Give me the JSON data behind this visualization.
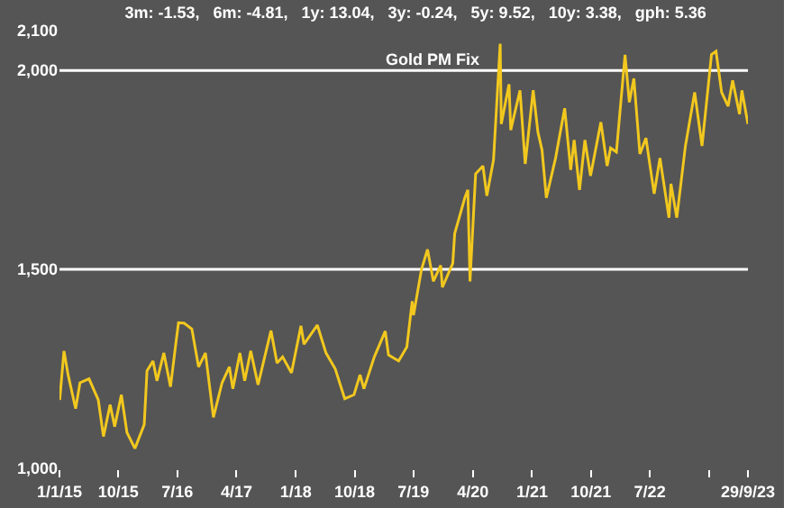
{
  "chart_data": {
    "type": "line",
    "title": "3m: -1.53,   6m: -4.81,   1y: 13.04,   3y: -0.24,   5y: 9.52,   10y: 3.38,   gph: 5.36",
    "annotations": [
      "Gold PM Fix"
    ],
    "x": [
      "2015-01-02",
      "2015-01-22",
      "2015-02-10",
      "2015-03-17",
      "2015-04-06",
      "2015-05-18",
      "2015-06-30",
      "2015-07-24",
      "2015-08-24",
      "2015-09-14",
      "2015-10-15",
      "2015-11-10",
      "2015-12-17",
      "2016-01-29",
      "2016-02-11",
      "2016-03-10",
      "2016-03-28",
      "2016-04-29",
      "2016-05-30",
      "2016-06-24",
      "2016-07-06",
      "2016-08-01",
      "2016-09-06",
      "2016-10-07",
      "2016-11-08",
      "2016-12-15",
      "2017-01-24",
      "2017-02-27",
      "2017-03-15",
      "2017-04-17",
      "2017-05-09",
      "2017-06-06",
      "2017-07-10",
      "2017-09-08",
      "2017-10-06",
      "2017-11-01",
      "2017-12-12",
      "2018-01-25",
      "2018-02-08",
      "2018-04-11",
      "2018-05-21",
      "2018-07-03",
      "2018-08-16",
      "2018-09-28",
      "2018-10-26",
      "2018-11-13",
      "2018-12-31",
      "2019-02-20",
      "2019-03-07",
      "2019-04-23",
      "2019-05-31",
      "2019-06-25",
      "2019-07-01",
      "2019-08-07",
      "2019-09-04",
      "2019-10-01",
      "2019-11-04",
      "2019-11-12",
      "2019-12-30",
      "2020-01-08",
      "2020-02-24",
      "2020-03-09",
      "2020-03-19",
      "2020-04-14",
      "2020-05-18",
      "2020-06-05",
      "2020-07-06",
      "2020-08-06",
      "2020-08-11",
      "2020-09-16",
      "2020-09-24",
      "2020-11-06",
      "2020-11-30",
      "2021-01-06",
      "2021-01-28",
      "2021-02-16",
      "2021-03-08",
      "2021-04-20",
      "2021-06-01",
      "2021-06-29",
      "2021-07-15",
      "2021-08-09",
      "2021-09-03",
      "2021-09-29",
      "2021-11-16",
      "2021-12-15",
      "2021-12-31",
      "2022-01-27",
      "2022-03-08",
      "2022-03-28",
      "2022-04-18",
      "2022-05-16",
      "2022-06-13",
      "2022-07-21",
      "2022-08-17",
      "2022-09-28",
      "2022-10-07",
      "2022-11-03",
      "2022-12-13",
      "2023-01-25",
      "2023-02-28",
      "2023-04-13",
      "2023-05-04",
      "2023-05-30",
      "2023-06-29",
      "2023-07-20",
      "2023-08-21",
      "2023-09-01",
      "2023-09-29"
    ],
    "series": [
      {
        "color": "#f2c81e",
        "values": [
          1172,
          1295,
          1235,
          1150,
          1215,
          1225,
          1172,
          1080,
          1160,
          1105,
          1185,
          1090,
          1050,
          1110,
          1245,
          1270,
          1220,
          1290,
          1205,
          1315,
          1366,
          1365,
          1350,
          1255,
          1290,
          1128,
          1215,
          1255,
          1200,
          1290,
          1220,
          1295,
          1210,
          1346,
          1265,
          1280,
          1240,
          1358,
          1312,
          1360,
          1290,
          1250,
          1175,
          1185,
          1235,
          1200,
          1280,
          1345,
          1285,
          1270,
          1305,
          1420,
          1385,
          1500,
          1550,
          1470,
          1510,
          1455,
          1515,
          1590,
          1680,
          1700,
          1470,
          1740,
          1760,
          1685,
          1775,
          2067,
          1865,
          1965,
          1850,
          1950,
          1765,
          1950,
          1845,
          1800,
          1680,
          1780,
          1905,
          1750,
          1825,
          1700,
          1825,
          1735,
          1870,
          1760,
          1805,
          1795,
          2039,
          1920,
          1980,
          1790,
          1830,
          1690,
          1780,
          1630,
          1715,
          1630,
          1810,
          1945,
          1810,
          2040,
          2048,
          1945,
          1910,
          1975,
          1890,
          1950,
          1865
        ]
      }
    ],
    "xlim": [
      "2015-01-01",
      "2023-09-29"
    ],
    "xticks": [
      {
        "value": "2015-01-01",
        "label": "1/1/15"
      },
      {
        "value": "2015-10-01",
        "label": "10/15"
      },
      {
        "value": "2016-07-01",
        "label": "7/16"
      },
      {
        "value": "2017-04-01",
        "label": "4/17"
      },
      {
        "value": "2018-01-01",
        "label": "1/18"
      },
      {
        "value": "2018-10-01",
        "label": "10/18"
      },
      {
        "value": "2019-07-01",
        "label": "7/19"
      },
      {
        "value": "2020-04-01",
        "label": "4/20"
      },
      {
        "value": "2021-01-01",
        "label": "1/21"
      },
      {
        "value": "2021-10-01",
        "label": "10/21"
      },
      {
        "value": "2022-07-01",
        "label": "7/22"
      },
      {
        "value": "2023-04-01",
        "label": null
      },
      {
        "value": "2023-09-29",
        "label": "29/9/23"
      }
    ],
    "ylim": [
      1000,
      2100
    ],
    "yticks": [
      {
        "value": 1000,
        "label": "1,000"
      },
      {
        "value": 1500,
        "label": "1,500"
      },
      {
        "value": 2000,
        "label": "2,000"
      },
      {
        "value": 2100,
        "label": "2,100"
      }
    ],
    "ref_lines": [
      {
        "axis": "y",
        "value": 1500,
        "color": "#ffffff"
      },
      {
        "axis": "y",
        "value": 2000,
        "color": "#ffffff"
      }
    ],
    "grid": false,
    "legend": false
  }
}
